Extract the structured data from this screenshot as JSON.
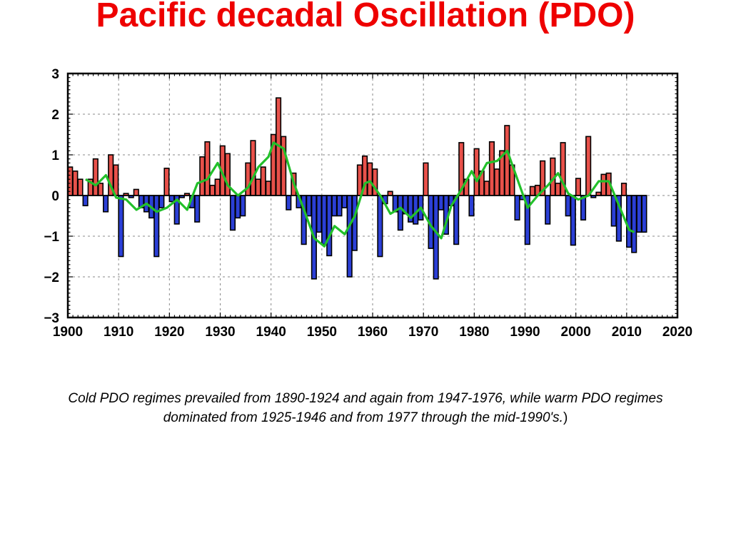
{
  "page": {
    "title": "Pacific decadal Oscillation (PDO)",
    "caption_line1": "Cold PDO regimes prevailed from 1890-1924 and again from 1947-1976, while warm PDO regimes",
    "caption_line2": "dominated from 1925-1946 and from 1977 through the mid-1990's.",
    "caption_close": ")"
  },
  "colors": {
    "title": "#ee0000",
    "positive_bar": "#e8514a",
    "negative_bar": "#2b3fd6",
    "smooth_line": "#22c02a",
    "grid": "#888888"
  },
  "chart_data": {
    "type": "bar",
    "title": "",
    "xlabel": "",
    "ylabel": "",
    "xlim": [
      1900,
      2020
    ],
    "ylim": [
      -3,
      3
    ],
    "x_ticks": [
      1900,
      1910,
      1920,
      1930,
      1940,
      1950,
      1960,
      1970,
      1980,
      1990,
      2000,
      2010,
      2020
    ],
    "y_ticks": [
      3,
      2,
      1,
      0,
      -1,
      -2,
      -3
    ],
    "y_tick_labels": [
      "3",
      "2",
      "1",
      "0",
      "−1",
      "−2",
      "−3"
    ],
    "grid": true,
    "series": [
      {
        "kind": "bar",
        "x": [
          1900,
          1901,
          1902,
          1903,
          1904,
          1905,
          1906,
          1907,
          1908,
          1909,
          1910,
          1911,
          1912,
          1913,
          1914,
          1915,
          1916,
          1917,
          1918,
          1919,
          1920,
          1921,
          1922,
          1923,
          1924,
          1925,
          1926,
          1927,
          1928,
          1929,
          1930,
          1931,
          1932,
          1933,
          1934,
          1935,
          1936,
          1937,
          1938,
          1939,
          1940,
          1941,
          1942,
          1943,
          1944,
          1945,
          1946,
          1947,
          1948,
          1949,
          1950,
          1951,
          1952,
          1953,
          1954,
          1955,
          1956,
          1957,
          1958,
          1959,
          1960,
          1961,
          1962,
          1963,
          1964,
          1965,
          1966,
          1967,
          1968,
          1969,
          1970,
          1971,
          1972,
          1973,
          1974,
          1975,
          1976,
          1977,
          1978,
          1979,
          1980,
          1981,
          1982,
          1983,
          1984,
          1985,
          1986,
          1987,
          1988,
          1989,
          1990,
          1991,
          1992,
          1993,
          1994,
          1995,
          1996,
          1997,
          1998,
          1999,
          2000,
          2001,
          2002,
          2003,
          2004,
          2005,
          2006,
          2007,
          2008,
          2009,
          2010,
          2011,
          2012,
          2013
        ],
        "values": [
          0.7,
          0.6,
          0.4,
          -0.25,
          0.4,
          0.9,
          0.3,
          -0.4,
          1.0,
          0.75,
          -1.5,
          0.05,
          -0.05,
          0.15,
          -0.3,
          -0.4,
          -0.55,
          -1.5,
          -0.3,
          0.67,
          -0.15,
          -0.7,
          -0.05,
          0.05,
          -0.3,
          -0.65,
          0.95,
          1.32,
          0.25,
          0.4,
          1.22,
          1.03,
          -0.85,
          -0.55,
          -0.5,
          0.8,
          1.35,
          0.4,
          0.7,
          0.35,
          1.5,
          2.4,
          1.45,
          -0.35,
          0.55,
          -0.3,
          -1.2,
          -0.5,
          -2.05,
          -0.9,
          -1.2,
          -1.48,
          -0.5,
          -0.5,
          -0.3,
          -2.0,
          -1.35,
          0.75,
          0.97,
          0.8,
          0.65,
          -1.5,
          -0.2,
          0.1,
          -0.4,
          -0.85,
          -0.45,
          -0.65,
          -0.7,
          -0.6,
          0.8,
          -1.3,
          -2.05,
          -0.35,
          -0.95,
          -0.25,
          -1.2,
          1.3,
          0.4,
          -0.5,
          1.15,
          0.6,
          0.35,
          1.32,
          0.65,
          1.1,
          1.72,
          0.75,
          -0.6,
          -0.1,
          -1.2,
          0.22,
          0.25,
          0.85,
          -0.7,
          0.92,
          0.3,
          1.3,
          -0.5,
          -1.22,
          0.42,
          -0.6,
          1.45,
          -0.05,
          0.08,
          0.52,
          0.55,
          -0.75,
          -1.12,
          0.3,
          -1.27,
          -1.4,
          -0.9,
          -0.9
        ]
      },
      {
        "kind": "line",
        "x": [
          1903,
          1905,
          1907,
          1909,
          1911,
          1913,
          1915,
          1917,
          1919,
          1921,
          1923,
          1925,
          1927,
          1929,
          1931,
          1933,
          1935,
          1937,
          1939,
          1940,
          1942,
          1944,
          1946,
          1948,
          1950,
          1952,
          1954,
          1956,
          1958,
          1959,
          1961,
          1963,
          1965,
          1967,
          1969,
          1971,
          1973,
          1975,
          1977,
          1979,
          1980,
          1982,
          1984,
          1986,
          1988,
          1990,
          1992,
          1994,
          1996,
          1998,
          2000,
          2002,
          2004,
          2006,
          2008,
          2010,
          2011
        ],
        "values": [
          0.4,
          0.25,
          0.5,
          -0.05,
          -0.1,
          -0.35,
          -0.2,
          -0.4,
          -0.3,
          -0.1,
          -0.35,
          0.3,
          0.4,
          0.8,
          0.25,
          0.0,
          0.2,
          0.7,
          0.95,
          1.3,
          1.15,
          0.3,
          -0.35,
          -1.05,
          -1.25,
          -0.75,
          -0.95,
          -0.5,
          0.3,
          0.35,
          0.0,
          -0.45,
          -0.3,
          -0.55,
          -0.3,
          -0.75,
          -1.05,
          -0.25,
          0.15,
          0.6,
          0.35,
          0.8,
          0.85,
          1.1,
          0.4,
          -0.3,
          0.0,
          0.25,
          0.55,
          0.05,
          -0.1,
          0.0,
          0.35,
          0.35,
          -0.25,
          -0.85,
          -0.9
        ]
      }
    ]
  }
}
